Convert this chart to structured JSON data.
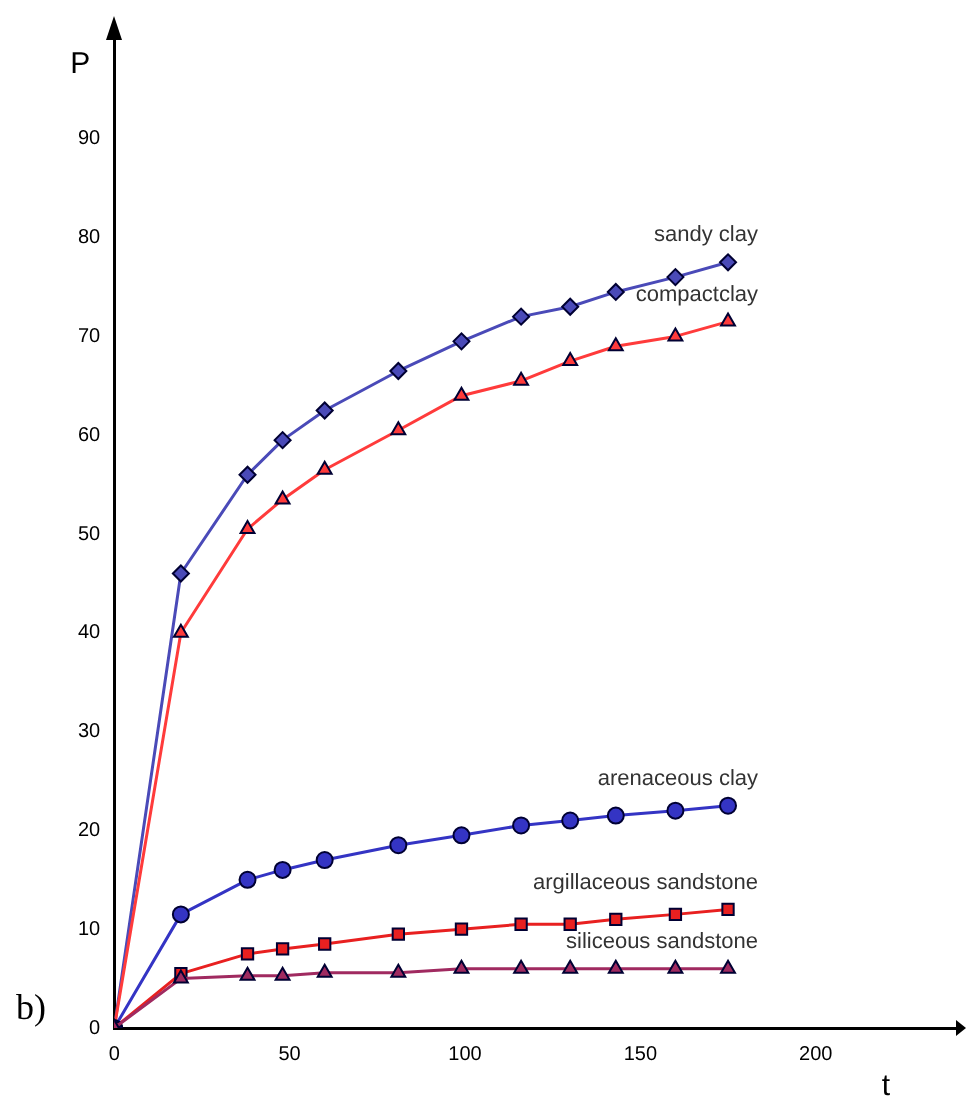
{
  "chart_data": {
    "type": "line",
    "xlabel": "t",
    "ylabel": "P",
    "annotations": [
      "b)"
    ],
    "x": [
      0,
      19,
      38,
      48,
      60,
      81,
      99,
      116,
      130,
      143,
      160,
      175
    ],
    "xlim": [
      0,
      240
    ],
    "ylim": [
      0,
      100
    ],
    "xticks": [
      0,
      50,
      100,
      150,
      200
    ],
    "yticks": [
      0,
      10,
      20,
      30,
      40,
      50,
      60,
      70,
      80,
      90
    ],
    "grid": false,
    "legend": false,
    "line_style": "solid",
    "series": [
      {
        "name": "sandy clay",
        "color": "#4a4ab8",
        "marker": "diamond",
        "values": [
          0,
          46,
          56,
          59.5,
          62.5,
          66.5,
          69.5,
          72,
          73,
          74.5,
          76,
          77.5
        ]
      },
      {
        "name": "compactclay",
        "color": "#ff3b3b",
        "marker": "triangle",
        "values": [
          0,
          40,
          50.5,
          53.5,
          56.5,
          60.5,
          64,
          65.5,
          67.5,
          69,
          70,
          71.5
        ]
      },
      {
        "name": "arenaceous clay",
        "color": "#3434c4",
        "marker": "circle",
        "values": [
          0,
          11.5,
          15,
          16,
          17,
          18.5,
          19.5,
          20.5,
          21,
          21.5,
          22,
          22.5
        ]
      },
      {
        "name": "argillaceous sandstone",
        "color": "#e82020",
        "marker": "square",
        "values": [
          0,
          5.5,
          7.5,
          8,
          8.5,
          9.5,
          10,
          10.5,
          10.5,
          11,
          11.5,
          12
        ]
      },
      {
        "name": "siliceous sandstone",
        "color": "#a02a60",
        "marker": "triangle",
        "values": [
          0,
          5,
          5.3,
          5.3,
          5.6,
          5.6,
          6,
          6,
          6,
          6,
          6,
          6
        ]
      }
    ]
  }
}
